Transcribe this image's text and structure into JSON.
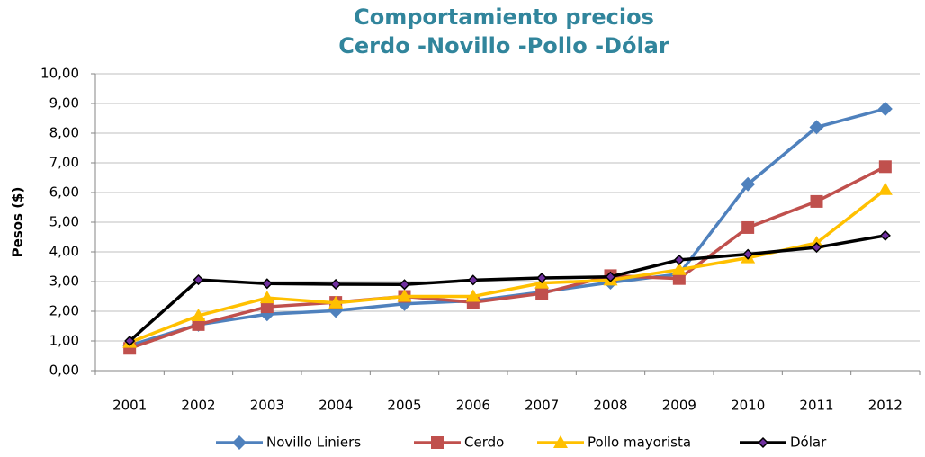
{
  "chart_data": {
    "type": "line",
    "title": [
      "Comportamiento precios",
      "Cerdo -Novillo -Pollo -Dólar"
    ],
    "ylabel": "Pesos ($)",
    "categories": [
      "2001",
      "2002",
      "2003",
      "2004",
      "2005",
      "2006",
      "2007",
      "2008",
      "2009",
      "2010",
      "2011",
      "2012"
    ],
    "series": [
      {
        "name": "Novillo Liniers",
        "color": "#4f81bd",
        "marker": "diamond",
        "values": [
          0.85,
          1.55,
          1.9,
          2.02,
          2.25,
          2.35,
          2.65,
          2.97,
          3.25,
          6.28,
          8.2,
          8.82
        ]
      },
      {
        "name": "Cerdo",
        "color": "#c0504d",
        "marker": "square",
        "values": [
          0.75,
          1.55,
          2.15,
          2.3,
          2.5,
          2.3,
          2.6,
          3.2,
          3.1,
          4.82,
          5.7,
          6.87
        ]
      },
      {
        "name": "Pollo mayorista",
        "color": "#ffc000",
        "marker": "triangle",
        "values": [
          0.95,
          1.85,
          2.45,
          2.28,
          2.5,
          2.5,
          2.95,
          3.05,
          3.4,
          3.8,
          4.3,
          6.1
        ]
      },
      {
        "name": "Dólar",
        "color": "#000000",
        "marker": "small-diamond",
        "values": [
          1.0,
          3.06,
          2.93,
          2.91,
          2.9,
          3.05,
          3.12,
          3.16,
          3.73,
          3.92,
          4.15,
          4.55
        ]
      }
    ],
    "ylim": [
      0,
      10
    ],
    "yticks": [
      {
        "value": 0,
        "label": "0,00"
      },
      {
        "value": 1,
        "label": "1,00"
      },
      {
        "value": 2,
        "label": "2,00"
      },
      {
        "value": 3,
        "label": "3,00"
      },
      {
        "value": 4,
        "label": "4,00"
      },
      {
        "value": 5,
        "label": "5,00"
      },
      {
        "value": 6,
        "label": "6,00"
      },
      {
        "value": 7,
        "label": "7,00"
      },
      {
        "value": 8,
        "label": "8,00"
      },
      {
        "value": 9,
        "label": "9,00"
      },
      {
        "value": 10,
        "label": "10,00"
      }
    ],
    "grid": true,
    "legend": "bottom"
  }
}
